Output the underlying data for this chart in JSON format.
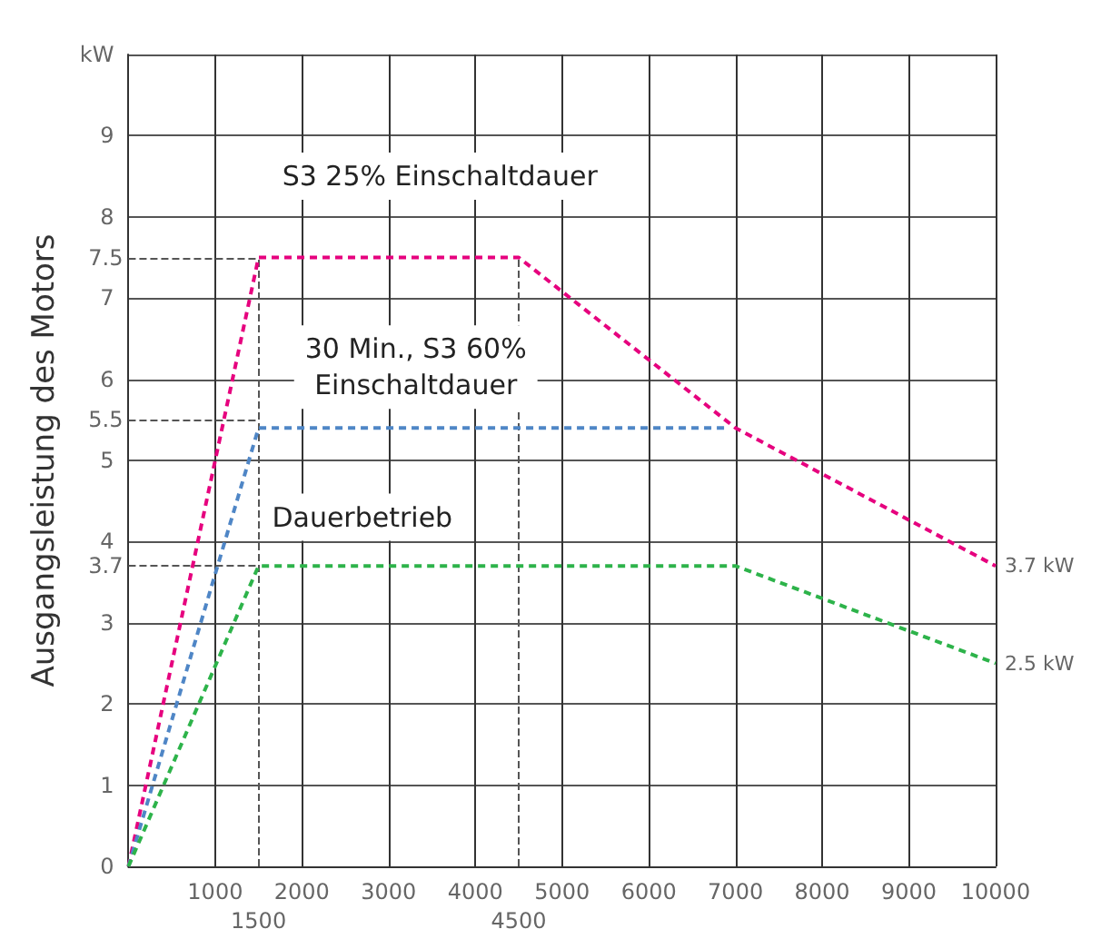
{
  "chart_data": {
    "type": "line",
    "ylabel": "Ausgangsleistung des Motors",
    "xlim": [
      0,
      10000
    ],
    "xticks": [
      {
        "value": 0,
        "label": null
      },
      1000,
      2000,
      3000,
      4000,
      5000,
      6000,
      7000,
      8000,
      9000,
      10000
    ],
    "ylim": [
      0,
      10
    ],
    "yticks": [
      0,
      1,
      2,
      3,
      4,
      5,
      6,
      7,
      8,
      9,
      {
        "value": 10,
        "label": "kW"
      }
    ],
    "grid": true,
    "marker": "none",
    "line_style": "dashed",
    "series": [
      {
        "color": "#e6007e",
        "x": [
          0,
          1500,
          4500,
          7000,
          10000
        ],
        "values": [
          0,
          7.5,
          7.5,
          5.4,
          3.7
        ]
      },
      {
        "color": "#4f86c6",
        "x": [
          0,
          1500,
          6900
        ],
        "values": [
          0,
          5.4,
          5.4
        ]
      },
      {
        "color": "#2db34a",
        "x": [
          0,
          1500,
          7000,
          10000
        ],
        "values": [
          0,
          3.7,
          3.7,
          2.5
        ]
      }
    ],
    "ref_lines": [
      {
        "axis": "x",
        "value": 1500,
        "label": "1500",
        "color": "#555555",
        "line_style": "dashed"
      },
      {
        "axis": "x",
        "value": 4500,
        "label": "4500",
        "color": "#555555",
        "line_style": "dashed"
      },
      {
        "axis": "y",
        "value": 7.5,
        "label": "7.5",
        "color": "#555555",
        "line_style": "dashed"
      },
      {
        "axis": "y",
        "value": 5.5,
        "label": "5.5",
        "color": "#555555",
        "line_style": "dashed"
      },
      {
        "axis": "y",
        "value": 3.7,
        "label": "3.7",
        "color": "#555555",
        "line_style": "dashed"
      }
    ],
    "annotations": [
      "S3 25% Einschaltdauer",
      "30 Min., S3 60%\nEinschaltdauer",
      "Dauerbetrieb",
      {
        "text": "3.7 kW",
        "x": 10000,
        "y": 3.7
      },
      {
        "text": "2.5 kW",
        "x": 10000,
        "y": 2.5
      }
    ]
  }
}
